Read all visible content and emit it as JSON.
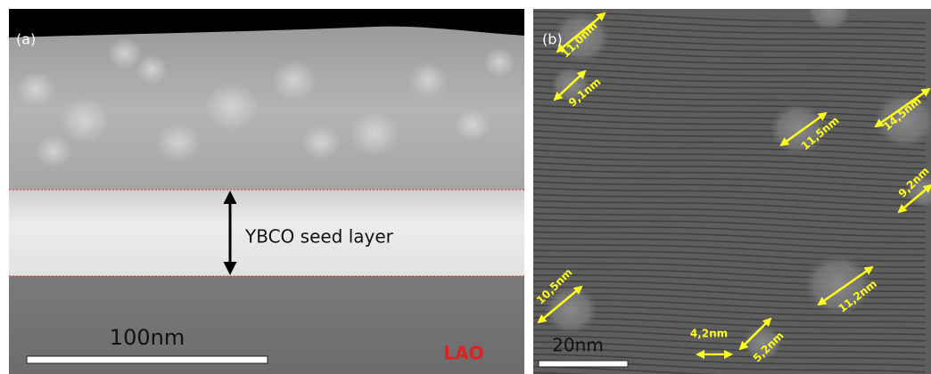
{
  "panels": {
    "a": {
      "label": "(a)",
      "annotation": "YBCO seed layer",
      "scale_bar": "100nm",
      "substrate": "LAO"
    },
    "b": {
      "label": "(b)",
      "scale_bar": "20nm",
      "measurements": [
        "11,0nm",
        "9,1nm",
        "11,5nm",
        "14,5nm",
        "9,2nm",
        "10,5nm",
        "11,2nm",
        "4,2nm",
        "5,2nm"
      ]
    }
  }
}
